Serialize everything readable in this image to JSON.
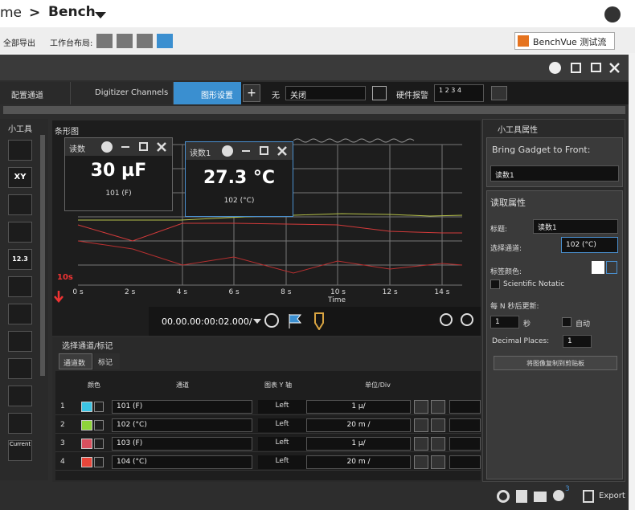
{
  "header": {
    "breadcrumb_prefix": "me",
    "separator": ">",
    "workspace": "Bench",
    "export_all": "全部导出",
    "layout_label": "工作台布局:",
    "flow_button": "BenchVue 测试流"
  },
  "toolbar": {
    "tabs": [
      "配置通道",
      "Digitizer Channels",
      "图形设置"
    ],
    "add": "+",
    "trigger_label": "无",
    "trigger_value": "关闭",
    "alarm_label": "硬件报警",
    "alarm_channels": "1 2 3 4"
  },
  "toolbox": {
    "title": "小工具",
    "icons": [
      "XY",
      "12.3",
      "Current"
    ]
  },
  "chart": {
    "title": "条形图",
    "x_ticks": [
      "0 s",
      "2 s",
      "4 s",
      "6 s",
      "8 s",
      "10 s",
      "12 s",
      "14 s"
    ],
    "x_label": "Time",
    "marker": "10s",
    "time_display": "00.00.00:00:02.000/"
  },
  "gadgets": [
    {
      "title": "读数",
      "value": "30 µF",
      "channel": "101 (F)"
    },
    {
      "title": "读数1",
      "value": "27.3 °C",
      "channel": "102 (°C)"
    }
  ],
  "channel_panel": {
    "title": "选择通道/标记",
    "tabs": [
      "通道数",
      "标记"
    ],
    "columns": [
      "颜色",
      "通道",
      "图表 Y 轴",
      "单位/Div"
    ],
    "rows": [
      {
        "index": "1",
        "color": "#3cc4e4",
        "channel": "101 (F)",
        "axis": "Left",
        "scale": "1 µ/"
      },
      {
        "index": "2",
        "color": "#8fd43a",
        "channel": "102 (°C)",
        "axis": "Left",
        "scale": "20 m /"
      },
      {
        "index": "3",
        "color": "#d9505e",
        "channel": "103 (F)",
        "axis": "Left",
        "scale": "1 µ/"
      },
      {
        "index": "4",
        "color": "#e8463a",
        "channel": "104 (°C)",
        "axis": "Left",
        "scale": "20 m /"
      }
    ]
  },
  "properties": {
    "title": "小工具属性",
    "bring_front": "Bring Gadget to Front:",
    "bring_front_value": "读数1",
    "section": "读取属性",
    "title_label": "标题:",
    "title_value": "读数1",
    "channel_label": "选择通道:",
    "channel_value": "102 (°C)",
    "color_label": "标签颜色:",
    "scientific": "Scientific Notatic",
    "update_label": "每 N 秒后更新:",
    "update_value": "1",
    "update_unit": "秒",
    "auto": "自动",
    "decimal_label": "Decimal Places:",
    "decimal_value": "1",
    "copy_button": "将图像复制到剪贴板"
  },
  "status": {
    "notification_count": "3",
    "export": "Export"
  }
}
